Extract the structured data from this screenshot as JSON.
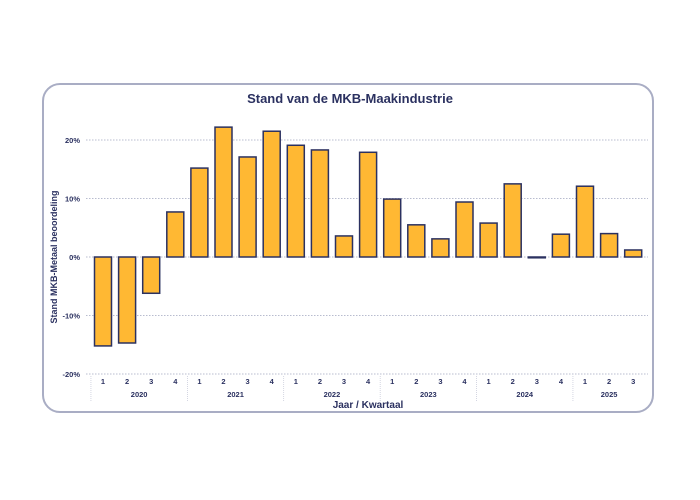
{
  "chart_data": {
    "type": "bar",
    "title": "Stand van de MKB-Maakindustrie",
    "xlabel": "Jaar / Kwartaal",
    "ylabel": "Stand MKB-Metaal beoordeling",
    "ylim": [
      -20,
      20
    ],
    "yticks": [
      -20,
      -10,
      0,
      10,
      20
    ],
    "ytick_labels": [
      "-20%",
      "-10%",
      "0%",
      "10%",
      "20%"
    ],
    "grid": true,
    "groups": [
      {
        "label": "2020",
        "quarters": [
          "1",
          "2",
          "3",
          "4"
        ]
      },
      {
        "label": "2021",
        "quarters": [
          "1",
          "2",
          "3",
          "4"
        ]
      },
      {
        "label": "2022",
        "quarters": [
          "1",
          "2",
          "3",
          "4"
        ]
      },
      {
        "label": "2023",
        "quarters": [
          "1",
          "2",
          "3",
          "4"
        ]
      },
      {
        "label": "2024",
        "quarters": [
          "1",
          "2",
          "3",
          "4"
        ]
      },
      {
        "label": "2025",
        "quarters": [
          "1",
          "2",
          "3"
        ]
      }
    ],
    "values": [
      -15.2,
      -14.7,
      -6.2,
      7.7,
      15.2,
      22.2,
      17.1,
      21.5,
      19.1,
      18.3,
      3.6,
      17.9,
      9.9,
      5.5,
      3.1,
      9.4,
      5.8,
      12.5,
      -0.1,
      3.9,
      12.1,
      4.0,
      1.2
    ],
    "colors": {
      "bar": "#ffb833",
      "bar_edge": "#2b3160",
      "text": "#2b3160",
      "grid": "#b8bccf"
    }
  }
}
